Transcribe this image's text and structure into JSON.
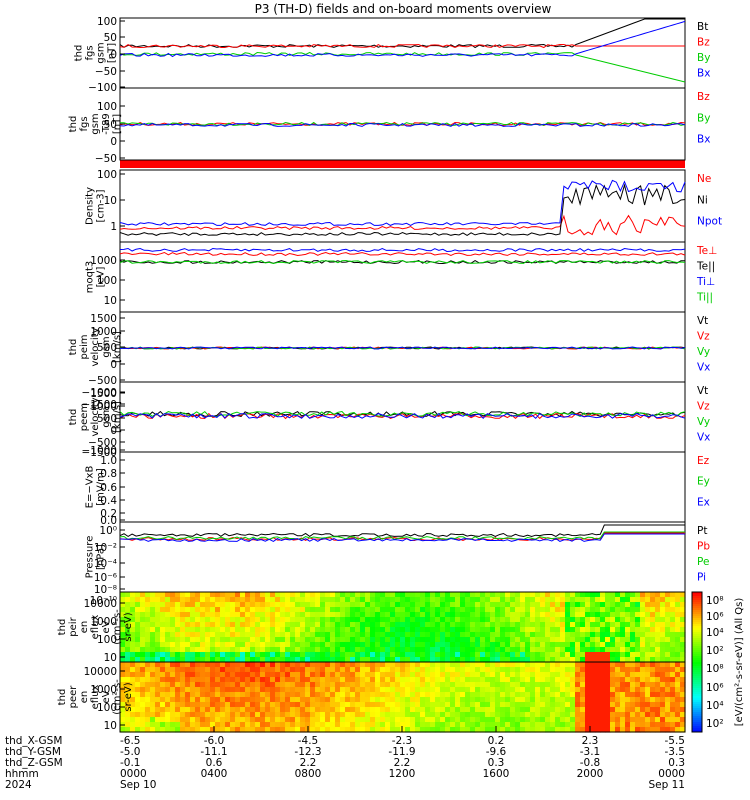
{
  "title": "P3 (TH-D) fields and on-board moments overview",
  "chart_data": {
    "type": "line",
    "title": "P3 (TH-D) fields and on-board moments overview",
    "panels": [
      {
        "key": "fgs",
        "ylabel": [
          "thd",
          "fgs",
          "gsm",
          "[nT]"
        ],
        "ylim": [
          -100,
          100
        ],
        "ticks": [
          "100",
          "50",
          "0",
          "−50",
          "−100"
        ],
        "legend": [
          {
            "name": "Bt",
            "color": "#000000"
          },
          {
            "name": "Bz",
            "color": "#ff0000"
          },
          {
            "name": "By",
            "color": "#00cc00"
          },
          {
            "name": "Bx",
            "color": "#0000ff"
          }
        ]
      },
      {
        "key": "dbfgs",
        "ylabel": [
          "thd",
          "fgs",
          "gsm",
          "-T89",
          "[nT]"
        ],
        "ylim": [
          -120,
          120
        ],
        "ticks": [
          "100",
          "50",
          "0",
          "−50",
          "−100"
        ],
        "legend": [
          {
            "name": "Bz",
            "color": "#ff0000"
          },
          {
            "name": "By",
            "color": "#00cc00"
          },
          {
            "name": "Bx",
            "color": "#0000ff"
          }
        ]
      },
      {
        "key": "density",
        "ylabel": [
          "Density",
          "[cm-3]"
        ],
        "scale": "log",
        "ticks": [
          "100",
          "10",
          "1"
        ],
        "legend": [
          {
            "name": "Ne",
            "color": "#ff0000"
          },
          {
            "name": "Ni",
            "color": "#000000"
          },
          {
            "name": "Npot",
            "color": "#0000ff"
          }
        ]
      },
      {
        "key": "temp",
        "ylabel": [
          "moqt3",
          "[eV]"
        ],
        "scale": "log",
        "ticks": [
          "1000",
          "100",
          "10"
        ],
        "legend": [
          {
            "name": "Te⊥",
            "color": "#ff0000"
          },
          {
            "name": "Te||",
            "color": "#000000"
          },
          {
            "name": "Ti⊥",
            "color": "#0000ff"
          },
          {
            "name": "Ti||",
            "color": "#00cc00"
          }
        ]
      },
      {
        "key": "vi",
        "ylabel": [
          "thd",
          "peim",
          "velocity",
          "gsm",
          "[km/s]"
        ],
        "ylim": [
          -1500,
          1500
        ],
        "ticks": [
          "1500",
          "1000",
          "500",
          "0",
          "−500",
          "−1000",
          "−1500"
        ],
        "legend": [
          {
            "name": "Vt",
            "color": "#000000"
          },
          {
            "name": "Vz",
            "color": "#ff0000"
          },
          {
            "name": "Vy",
            "color": "#00cc00"
          },
          {
            "name": "Vx",
            "color": "#0000ff"
          }
        ]
      },
      {
        "key": "ve",
        "ylabel": [
          "thd",
          "peem",
          "velocity",
          "gsm",
          "[km/s]"
        ],
        "ylim": [
          -1500,
          1500
        ],
        "ticks": [
          "1500",
          "1000",
          "500",
          "0",
          "−500",
          "−1000",
          "−1500"
        ],
        "legend": [
          {
            "name": "Vt",
            "color": "#000000"
          },
          {
            "name": "Vz",
            "color": "#ff0000"
          },
          {
            "name": "Vy",
            "color": "#00cc00"
          },
          {
            "name": "Vx",
            "color": "#0000ff"
          }
        ]
      },
      {
        "key": "efield",
        "ylabel": [
          "E=−VxB",
          "[mV/m]"
        ],
        "ylim": [
          0,
          1
        ],
        "ticks": [
          "1.0",
          "0.8",
          "0.6",
          "0.4",
          "0.2",
          "0.0"
        ],
        "legend": [
          {
            "name": "Ez",
            "color": "#ff0000"
          },
          {
            "name": "Ey",
            "color": "#00cc00"
          },
          {
            "name": "Ex",
            "color": "#0000ff"
          }
        ]
      },
      {
        "key": "pressure",
        "ylabel": [
          "Pressure",
          "[nPa]"
        ],
        "scale": "log",
        "ticks": [
          "10⁰",
          "10⁻²",
          "10⁻⁴",
          "10⁻⁶",
          "10⁻⁸",
          "10⁻¹⁰"
        ],
        "legend": [
          {
            "name": "Pt",
            "color": "#000000"
          },
          {
            "name": "Pb",
            "color": "#ff0000"
          },
          {
            "name": "Pe",
            "color": "#00cc00"
          },
          {
            "name": "Pi",
            "color": "#0000ff"
          }
        ]
      },
      {
        "key": "ions",
        "ylabel": [
          "thd",
          "peir",
          "en",
          "eflux",
          "eV",
          "(cm²-s-",
          "sr-eV)"
        ],
        "scale": "log",
        "ticks": [
          "10000",
          "1000",
          "100",
          "10"
        ],
        "spectrogram": true
      },
      {
        "key": "electrons",
        "ylabel": [
          "thd",
          "peer",
          "en",
          "eflux",
          "eV",
          "(cm²-s-",
          "sr-eV)"
        ],
        "scale": "log",
        "ticks": [
          "10000",
          "1000",
          "100",
          "10"
        ],
        "spectrogram": true
      }
    ],
    "colorbar": {
      "label": "[eV/(cm²-s-sr-eV)] (All Qs)",
      "ion_ticks": [
        "10⁸",
        "10⁶",
        "10⁴",
        "10²"
      ],
      "electron_ticks": [
        "10⁸",
        "10⁶",
        "10⁴",
        "10²"
      ]
    },
    "x_axis": {
      "rows": [
        {
          "label": "thd_X-GSM",
          "values": [
            "-6.5",
            "-6.0",
            "-4.5",
            "-2.3",
            "0.2",
            "2.3",
            "-5.5"
          ]
        },
        {
          "label": "thd_Y-GSM",
          "values": [
            "-5.0",
            "-11.1",
            "-12.3",
            "-11.9",
            "-9.6",
            "-3.1",
            "-3.5"
          ]
        },
        {
          "label": "thd_Z-GSM",
          "values": [
            "-0.1",
            "0.6",
            "2.2",
            "2.2",
            "0.3",
            "-0.8",
            "0.3"
          ]
        },
        {
          "label": "hhmm",
          "values": [
            "0000",
            "0400",
            "0800",
            "1200",
            "1600",
            "2000",
            "0000"
          ]
        },
        {
          "label": "2024",
          "values": [
            "Sep 10",
            "",
            "",
            "",
            "",
            "",
            "Sep 11"
          ]
        }
      ]
    }
  }
}
